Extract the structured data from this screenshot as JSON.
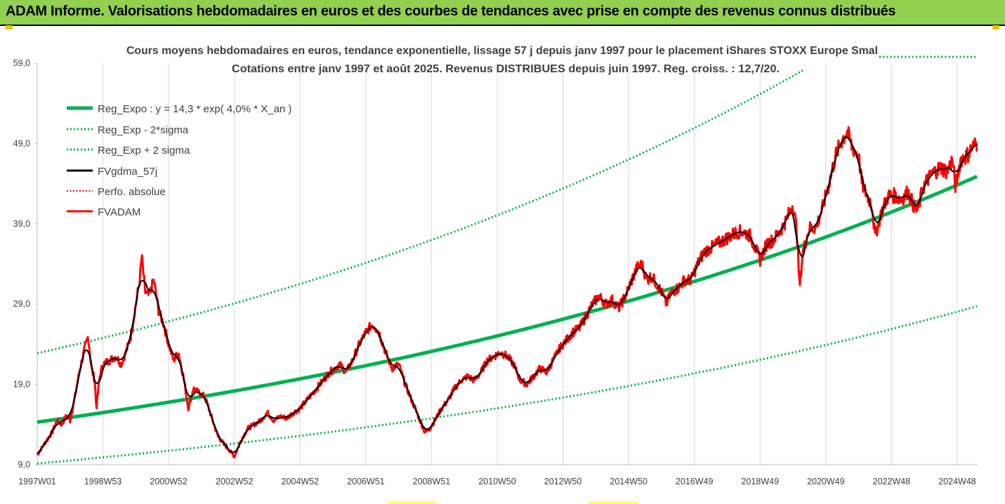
{
  "banner": {
    "title": "ADAM Informe. Valorisations hebdomadaires en euros et des courbes de tendances avec prise en compte des revenus connus distribués"
  },
  "colors": {
    "banner_bg": "#92d050",
    "reg_expo": "#00b050",
    "fv_gdma": "#000000",
    "fvadam": "#ff0000",
    "perfo": "#ff0000",
    "grid": "#d9d9d9"
  },
  "chart_data": {
    "type": "line",
    "title": "Cours moyens hebdomadaires en euros, tendance exponentielle, lissage 57 j depuis janv 1997 pour le placement iShares STOXX Europe Smal",
    "subtitle": "Cotations entre janv 1997 et août 2025. Revenus DISTRIBUES depuis juin 1997. Reg. croiss. : 12,7/20.",
    "ylim": [
      9.0,
      59.0
    ],
    "yticks": [
      "9,0",
      "19,0",
      "29,0",
      "39,0",
      "49,0",
      "59,0"
    ],
    "ytick_values": [
      9,
      19,
      29,
      39,
      49,
      59
    ],
    "xlim": [
      1997.0,
      2025.62
    ],
    "xticks": [
      "1997W01",
      "1998W53",
      "2000W52",
      "2002W52",
      "2004W52",
      "2006W51",
      "2008W51",
      "2010W50",
      "2012W50",
      "2014W50",
      "2016W49",
      "2018W49",
      "2020W49",
      "2022W48",
      "2024W48"
    ],
    "xtick_values": [
      1997.0,
      1999.0,
      2001.0,
      2003.0,
      2005.0,
      2007.0,
      2009.0,
      2011.0,
      2013.0,
      2015.0,
      2017.0,
      2019.0,
      2021.0,
      2023.0,
      2025.0
    ],
    "grid": "vertical",
    "legend_position": "top-left",
    "regression": {
      "a": 14.3,
      "rate": 0.04,
      "upper_factor": 1.6,
      "lower_factor": 0.64
    },
    "series": [
      {
        "name": "Reg_Expo : y = 14,3 * exp( 4,0% *  X_an )",
        "color": "#00b050",
        "style": "solid",
        "width": 5
      },
      {
        "name": "Reg_Exp - 2*sigma",
        "color": "#00b050",
        "style": "dotted",
        "width": 3
      },
      {
        "name": "Reg_Exp + 2 sigma",
        "color": "#00b050",
        "style": "dotted",
        "width": 3
      },
      {
        "name": "FVgdma_57j",
        "color": "#000000",
        "style": "solid",
        "width": 3
      },
      {
        "name": "Perfo. absolue",
        "color": "#ff0000",
        "style": "dotted",
        "width": 2
      },
      {
        "name": "FVADAM",
        "color": "#ff0000",
        "style": "solid",
        "width": 3
      }
    ],
    "fvadam_points": [
      [
        1997.0,
        10.2
      ],
      [
        1997.2,
        11.5
      ],
      [
        1997.45,
        13.0
      ],
      [
        1997.6,
        14.5
      ],
      [
        1997.75,
        14.0
      ],
      [
        1997.9,
        15.2
      ],
      [
        1998.0,
        14.5
      ],
      [
        1998.15,
        17.5
      ],
      [
        1998.3,
        21.0
      ],
      [
        1998.45,
        23.5
      ],
      [
        1998.55,
        25.0
      ],
      [
        1998.65,
        21.0
      ],
      [
        1998.75,
        19.5
      ],
      [
        1998.8,
        16.0
      ],
      [
        1998.9,
        20.0
      ],
      [
        1999.0,
        21.5
      ],
      [
        1999.2,
        22.0
      ],
      [
        1999.4,
        22.5
      ],
      [
        1999.55,
        21.5
      ],
      [
        1999.7,
        23.0
      ],
      [
        1999.85,
        25.0
      ],
      [
        2000.0,
        29.0
      ],
      [
        2000.12,
        32.0
      ],
      [
        2000.18,
        35.0
      ],
      [
        2000.28,
        30.5
      ],
      [
        2000.4,
        30.0
      ],
      [
        2000.55,
        32.0
      ],
      [
        2000.7,
        28.0
      ],
      [
        2000.85,
        26.5
      ],
      [
        2001.0,
        24.0
      ],
      [
        2001.15,
        22.0
      ],
      [
        2001.3,
        23.0
      ],
      [
        2001.45,
        20.0
      ],
      [
        2001.6,
        16.0
      ],
      [
        2001.75,
        18.5
      ],
      [
        2001.9,
        18.0
      ],
      [
        2002.1,
        17.5
      ],
      [
        2002.3,
        15.0
      ],
      [
        2002.5,
        12.5
      ],
      [
        2002.7,
        11.5
      ],
      [
        2002.85,
        10.8
      ],
      [
        2003.0,
        10.0
      ],
      [
        2003.2,
        12.0
      ],
      [
        2003.4,
        13.5
      ],
      [
        2003.6,
        14.0
      ],
      [
        2003.8,
        14.5
      ],
      [
        2004.0,
        15.5
      ],
      [
        2004.2,
        14.5
      ],
      [
        2004.4,
        15.0
      ],
      [
        2004.6,
        14.8
      ],
      [
        2004.8,
        15.5
      ],
      [
        2005.0,
        16.0
      ],
      [
        2005.3,
        17.5
      ],
      [
        2005.6,
        19.0
      ],
      [
        2005.9,
        20.5
      ],
      [
        2006.2,
        21.5
      ],
      [
        2006.4,
        20.5
      ],
      [
        2006.6,
        22.0
      ],
      [
        2006.8,
        24.0
      ],
      [
        2007.0,
        25.5
      ],
      [
        2007.2,
        26.5
      ],
      [
        2007.4,
        25.5
      ],
      [
        2007.6,
        23.0
      ],
      [
        2007.8,
        21.0
      ],
      [
        2008.0,
        21.5
      ],
      [
        2008.2,
        19.0
      ],
      [
        2008.4,
        17.0
      ],
      [
        2008.6,
        15.0
      ],
      [
        2008.8,
        13.0
      ],
      [
        2008.95,
        13.5
      ],
      [
        2009.1,
        14.5
      ],
      [
        2009.3,
        16.0
      ],
      [
        2009.5,
        17.0
      ],
      [
        2009.7,
        18.5
      ],
      [
        2009.9,
        19.5
      ],
      [
        2010.1,
        20.0
      ],
      [
        2010.3,
        19.5
      ],
      [
        2010.5,
        20.5
      ],
      [
        2010.7,
        22.0
      ],
      [
        2010.9,
        22.5
      ],
      [
        2011.1,
        23.0
      ],
      [
        2011.3,
        22.5
      ],
      [
        2011.5,
        21.5
      ],
      [
        2011.7,
        19.5
      ],
      [
        2011.9,
        19.0
      ],
      [
        2012.1,
        20.0
      ],
      [
        2012.3,
        21.0
      ],
      [
        2012.5,
        20.5
      ],
      [
        2012.7,
        22.0
      ],
      [
        2012.9,
        23.5
      ],
      [
        2013.1,
        24.5
      ],
      [
        2013.3,
        25.5
      ],
      [
        2013.5,
        26.0
      ],
      [
        2013.7,
        27.5
      ],
      [
        2013.9,
        29.0
      ],
      [
        2014.1,
        30.0
      ],
      [
        2014.3,
        29.0
      ],
      [
        2014.5,
        29.5
      ],
      [
        2014.7,
        28.5
      ],
      [
        2014.9,
        30.0
      ],
      [
        2015.1,
        32.0
      ],
      [
        2015.25,
        33.5
      ],
      [
        2015.4,
        34.0
      ],
      [
        2015.55,
        32.0
      ],
      [
        2015.7,
        32.5
      ],
      [
        2015.85,
        31.5
      ],
      [
        2016.0,
        30.5
      ],
      [
        2016.15,
        29.0
      ],
      [
        2016.3,
        30.5
      ],
      [
        2016.5,
        31.0
      ],
      [
        2016.7,
        32.0
      ],
      [
        2016.9,
        32.0
      ],
      [
        2017.1,
        34.0
      ],
      [
        2017.3,
        35.5
      ],
      [
        2017.5,
        36.0
      ],
      [
        2017.7,
        36.5
      ],
      [
        2017.9,
        37.0
      ],
      [
        2018.1,
        37.5
      ],
      [
        2018.3,
        38.0
      ],
      [
        2018.5,
        38.0
      ],
      [
        2018.7,
        37.5
      ],
      [
        2018.9,
        35.5
      ],
      [
        2019.0,
        34.5
      ],
      [
        2019.2,
        36.5
      ],
      [
        2019.4,
        37.0
      ],
      [
        2019.6,
        38.0
      ],
      [
        2019.8,
        39.5
      ],
      [
        2020.0,
        41.5
      ],
      [
        2020.12,
        38.0
      ],
      [
        2020.2,
        31.0
      ],
      [
        2020.3,
        35.5
      ],
      [
        2020.5,
        38.5
      ],
      [
        2020.7,
        38.5
      ],
      [
        2020.9,
        41.0
      ],
      [
        2021.1,
        44.0
      ],
      [
        2021.3,
        47.5
      ],
      [
        2021.5,
        49.5
      ],
      [
        2021.65,
        50.5
      ],
      [
        2021.8,
        48.5
      ],
      [
        2022.0,
        47.5
      ],
      [
        2022.1,
        44.0
      ],
      [
        2022.25,
        42.5
      ],
      [
        2022.4,
        41.5
      ],
      [
        2022.5,
        37.5
      ],
      [
        2022.7,
        40.5
      ],
      [
        2022.9,
        42.5
      ],
      [
        2023.1,
        42.5
      ],
      [
        2023.3,
        42.0
      ],
      [
        2023.5,
        43.0
      ],
      [
        2023.7,
        41.0
      ],
      [
        2023.8,
        40.5
      ],
      [
        2023.95,
        43.5
      ],
      [
        2024.1,
        44.5
      ],
      [
        2024.3,
        45.5
      ],
      [
        2024.5,
        46.0
      ],
      [
        2024.7,
        45.5
      ],
      [
        2024.85,
        47.0
      ],
      [
        2024.95,
        43.5
      ],
      [
        2025.1,
        47.0
      ],
      [
        2025.3,
        47.5
      ],
      [
        2025.45,
        48.5
      ],
      [
        2025.6,
        49.0
      ]
    ]
  }
}
